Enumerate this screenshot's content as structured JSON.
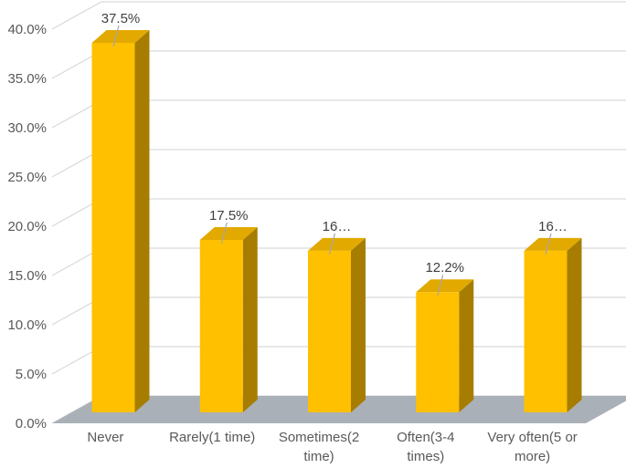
{
  "chart_data": {
    "type": "bar",
    "variant": "3d-column",
    "title": "",
    "xlabel": "",
    "ylabel": "",
    "categories": [
      "Never",
      "Rarely(1 time)",
      "Sometimes(2 time)",
      "Often(3-4 times)",
      "Very often(5 or more)"
    ],
    "category_label_lines": [
      [
        "Never"
      ],
      [
        "Rarely(1 time)"
      ],
      [
        "Sometimes(2",
        "time)"
      ],
      [
        "Often(3-4",
        "times)"
      ],
      [
        "Very often(5 or",
        "more)"
      ]
    ],
    "values": [
      37.5,
      17.5,
      16.4,
      12.2,
      16.4
    ],
    "data_labels": [
      "37.5%",
      "17.5%",
      "16…",
      "12.2%",
      "16…"
    ],
    "ylim": [
      0,
      40
    ],
    "ytick_step": 5,
    "ytick_labels": [
      "0.0%",
      "5.0%",
      "10.0%",
      "15.0%",
      "20.0%",
      "25.0%",
      "30.0%",
      "35.0%",
      "40.0%"
    ],
    "grid": true,
    "legend": "none",
    "colors": {
      "bar_front": "#FFC000",
      "bar_top": "#E2A900",
      "bar_side": "#A67D00",
      "floor": "#A9B0B8",
      "gridline": "#D9D9D9",
      "leader_line": "#A6A6A6",
      "data_label_text": "#404040",
      "axis_text": "#595959",
      "background": "#FFFFFF"
    }
  }
}
